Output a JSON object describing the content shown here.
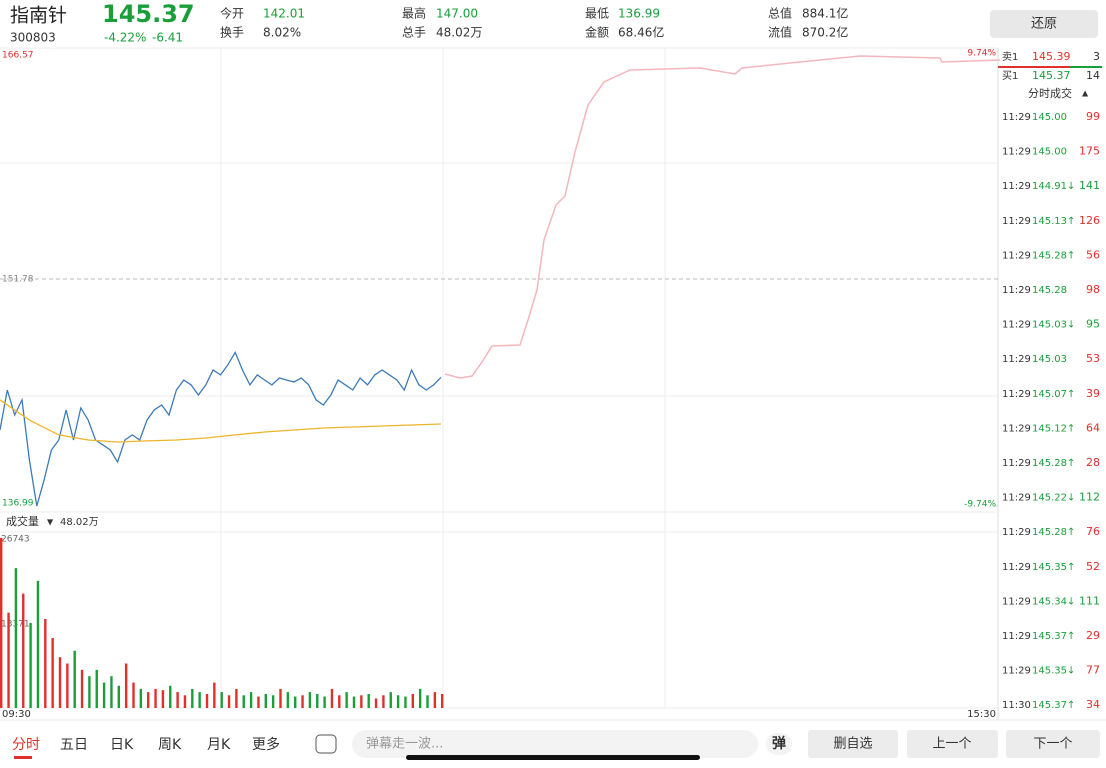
{
  "header": {
    "name": "指南针",
    "code": "300803",
    "price": "145.37",
    "change_pct": "-4.22%",
    "change": "-6.41",
    "price_color": "#1a9e3a",
    "stats": [
      {
        "label": "今开",
        "value": "142.01",
        "color": "#1a9e3a"
      },
      {
        "label": "换手",
        "value": "8.02%",
        "color": "#333333"
      },
      {
        "label": "最高",
        "value": "147.00",
        "color": "#1a9e3a"
      },
      {
        "label": "总手",
        "value": "48.02万",
        "color": "#333333"
      },
      {
        "label": "最低",
        "value": "136.99",
        "color": "#1a9e3a"
      },
      {
        "label": "金额",
        "value": "68.46亿",
        "color": "#333333"
      },
      {
        "label": "总值",
        "value": "884.1亿",
        "color": "#333333"
      },
      {
        "label": "流值",
        "value": "870.2亿",
        "color": "#333333"
      }
    ],
    "restore_button": "还原"
  },
  "chart_data": {
    "type": "line",
    "ylim": [
      136.99,
      166.57
    ],
    "yticks": [
      166.57,
      151.78,
      136.99
    ],
    "y2lim": [
      -9.74,
      9.74
    ],
    "y2ticks": [
      {
        "value": 9.74,
        "label": "9.74%"
      },
      {
        "value": -9.74,
        "label": "-9.74%"
      }
    ],
    "x_labels": [
      "09:30",
      "15:30"
    ],
    "price_color": "#3d7ab8",
    "average_color": "#f0b429",
    "price": [
      141.94,
      144.55,
      142.92,
      143.9,
      139.99,
      136.99,
      138.69,
      140.64,
      141.29,
      143.25,
      141.29,
      143.38,
      142.59,
      141.29,
      140.97,
      140.64,
      139.86,
      141.29,
      141.62,
      141.29,
      142.59,
      143.25,
      143.57,
      142.92,
      144.55,
      145.2,
      144.88,
      144.22,
      144.88,
      145.85,
      145.53,
      146.18,
      147.0,
      145.85,
      144.88,
      145.53,
      145.2,
      144.88,
      145.33,
      145.2,
      145.07,
      145.33,
      144.88,
      143.9,
      143.57,
      144.22,
      145.2,
      144.88,
      144.55,
      145.33,
      144.88,
      145.53,
      145.85,
      145.53,
      145.2,
      144.55,
      145.85,
      144.88,
      144.55,
      144.88,
      145.37
    ],
    "average": [
      143.9,
      142.59,
      141.62,
      141.29,
      141.16,
      141.23,
      141.29,
      141.42,
      141.62,
      141.81,
      141.94,
      142.07,
      142.14,
      142.2,
      142.27,
      142.33
    ]
  },
  "volume_data": {
    "type": "bar",
    "label": "成交量",
    "total": "48.02万",
    "ylim": [
      0,
      26743
    ],
    "yticks": [
      26743,
      13371
    ],
    "up_color": "#e0302c",
    "down_color": "#1a9e3a",
    "values": [
      26743,
      15000,
      22000,
      18000,
      13371,
      20000,
      14000,
      11000,
      8000,
      7000,
      9000,
      6000,
      5000,
      6000,
      4000,
      5000,
      3500,
      7000,
      4000,
      3000,
      2500,
      3000,
      2800,
      3500,
      2500,
      2000,
      3000,
      2500,
      2200,
      4000,
      2500,
      2000,
      3000,
      2000,
      2500,
      1800,
      2200,
      2000,
      3000,
      2500,
      1800,
      2000,
      2500,
      2200,
      1800,
      3000,
      2000,
      2500,
      1800,
      2000,
      2200,
      1500,
      2000,
      2500,
      2000,
      1800,
      2200,
      3000,
      2000,
      2500,
      2200
    ]
  },
  "order_book": [
    {
      "side": "卖1",
      "price": "145.39",
      "volume": "3"
    },
    {
      "side": "买1",
      "price": "145.37",
      "volume": "14"
    }
  ],
  "trades_title": "分时成交",
  "trades": [
    {
      "time": "11:29",
      "price": "145.00",
      "volume": "99",
      "color": "#e0302c"
    },
    {
      "time": "11:29",
      "price": "145.00",
      "volume": "175",
      "color": "#e0302c"
    },
    {
      "time": "11:29",
      "price": "144.91↓",
      "volume": "141",
      "color": "#1a9e3a"
    },
    {
      "time": "11:29",
      "price": "145.13↑",
      "volume": "126",
      "color": "#e0302c"
    },
    {
      "time": "11:29",
      "price": "145.28↑",
      "volume": "56",
      "color": "#e0302c"
    },
    {
      "time": "11:29",
      "price": "145.28",
      "volume": "98",
      "color": "#e0302c"
    },
    {
      "time": "11:29",
      "price": "145.03↓",
      "volume": "95",
      "color": "#1a9e3a"
    },
    {
      "time": "11:29",
      "price": "145.03",
      "volume": "53",
      "color": "#e0302c"
    },
    {
      "time": "11:29",
      "price": "145.07↑",
      "volume": "39",
      "color": "#e0302c"
    },
    {
      "time": "11:29",
      "price": "145.12↑",
      "volume": "64",
      "color": "#e0302c"
    },
    {
      "time": "11:29",
      "price": "145.28↑",
      "volume": "28",
      "color": "#e0302c"
    },
    {
      "time": "11:29",
      "price": "145.22↓",
      "volume": "112",
      "color": "#1a9e3a"
    },
    {
      "time": "11:29",
      "price": "145.28↑",
      "volume": "76",
      "color": "#e0302c"
    },
    {
      "time": "11:29",
      "price": "145.35↑",
      "volume": "52",
      "color": "#e0302c"
    },
    {
      "time": "11:29",
      "price": "145.34↓",
      "volume": "111",
      "color": "#1a9e3a"
    },
    {
      "time": "11:29",
      "price": "145.37↑",
      "volume": "29",
      "color": "#e0302c"
    },
    {
      "time": "11:29",
      "price": "145.35↓",
      "volume": "77",
      "color": "#e0302c"
    },
    {
      "time": "11:30",
      "price": "145.37↑",
      "volume": "34",
      "color": "#e0302c"
    }
  ],
  "tabs": [
    "分时",
    "五日",
    "日K",
    "周K",
    "月K",
    "更多"
  ],
  "comment_placeholder": "弹幕走一波...",
  "buttons": [
    "删自选",
    "上一个",
    "下一个"
  ]
}
